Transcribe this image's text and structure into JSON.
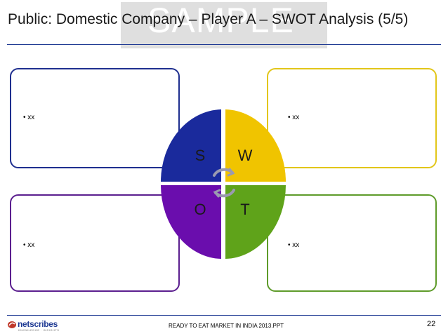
{
  "header": {
    "title": "Public: Domestic Company – Player A – SWOT Analysis (5/5)",
    "watermark": "SAMPLE"
  },
  "swot": {
    "s": {
      "letter": "S",
      "bullet": "• xx",
      "color": "#1a2a9c"
    },
    "w": {
      "letter": "W",
      "bullet": "• xx",
      "color": "#f0c400"
    },
    "o": {
      "letter": "O",
      "bullet": "• xx",
      "color": "#6a0dad"
    },
    "t": {
      "letter": "T",
      "bullet": "• xx",
      "color": "#5fa31a"
    }
  },
  "footer": {
    "logo_text": "netscribes",
    "logo_tagline": "KNOWLEDGE · INSIGHTS",
    "source": "READY TO EAT MARKET IN INDIA 2013.PPT",
    "page": "22"
  }
}
